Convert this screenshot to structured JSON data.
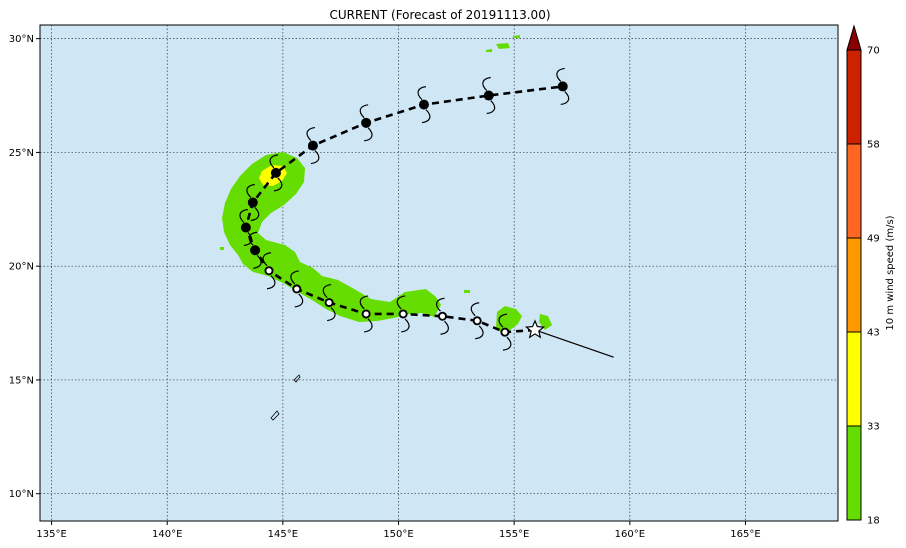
{
  "title": "CURRENT (Forecast of 20191113.00)",
  "map": {
    "lon_range": [
      134.5,
      169.0
    ],
    "lat_range": [
      8.8,
      30.6
    ],
    "lon_ticks": [
      {
        "value": 135,
        "label": "135°E"
      },
      {
        "value": 140,
        "label": "140°E"
      },
      {
        "value": 145,
        "label": "145°E"
      },
      {
        "value": 150,
        "label": "150°E"
      },
      {
        "value": 155,
        "label": "155°E"
      },
      {
        "value": 160,
        "label": "160°E"
      },
      {
        "value": 165,
        "label": "165°E"
      }
    ],
    "lat_ticks": [
      {
        "value": 10,
        "label": "10°N"
      },
      {
        "value": 15,
        "label": "15°N"
      },
      {
        "value": 20,
        "label": "20°N"
      },
      {
        "value": 25,
        "label": "25°N"
      },
      {
        "value": 30,
        "label": "30°N"
      }
    ],
    "grid": true,
    "ocean_color": "#cfe6f5",
    "wind_color_low": "#66dd00",
    "wind_color_mid": "#ffff00"
  },
  "colorbar": {
    "label": "10 m wind speed (m/s)",
    "ticks": [
      "18",
      "33",
      "43",
      "49",
      "58",
      "70"
    ],
    "colors": [
      "#66dd00",
      "#ffff00",
      "#ff9900",
      "#ff6622",
      "#cc2200",
      "#8b0000"
    ]
  },
  "chart_data": {
    "type": "scatter",
    "observed_track": [
      {
        "lon": 155.9,
        "lat": 17.2
      }
    ],
    "past_movement_line": [
      {
        "lon": 155.9,
        "lat": 17.2
      },
      {
        "lon": 159.3,
        "lat": 16.0
      }
    ],
    "forecast_track": [
      {
        "lon": 154.6,
        "lat": 17.1,
        "marker": "open"
      },
      {
        "lon": 153.4,
        "lat": 17.6,
        "marker": "open"
      },
      {
        "lon": 151.9,
        "lat": 17.8,
        "marker": "open"
      },
      {
        "lon": 150.2,
        "lat": 17.9,
        "marker": "open"
      },
      {
        "lon": 148.6,
        "lat": 17.9,
        "marker": "open"
      },
      {
        "lon": 147.0,
        "lat": 18.4,
        "marker": "open"
      },
      {
        "lon": 145.6,
        "lat": 19.0,
        "marker": "open"
      },
      {
        "lon": 144.4,
        "lat": 19.8,
        "marker": "open"
      },
      {
        "lon": 143.8,
        "lat": 20.7,
        "marker": "filled"
      },
      {
        "lon": 143.4,
        "lat": 21.7,
        "marker": "filled"
      },
      {
        "lon": 143.7,
        "lat": 22.8,
        "marker": "filled"
      },
      {
        "lon": 144.7,
        "lat": 24.1,
        "marker": "filled"
      },
      {
        "lon": 146.3,
        "lat": 25.3,
        "marker": "filled"
      },
      {
        "lon": 148.6,
        "lat": 26.3,
        "marker": "filled"
      },
      {
        "lon": 151.1,
        "lat": 27.1,
        "marker": "filled"
      },
      {
        "lon": 153.9,
        "lat": 27.5,
        "marker": "filled"
      },
      {
        "lon": 157.1,
        "lat": 27.9,
        "marker": "filled"
      }
    ]
  }
}
